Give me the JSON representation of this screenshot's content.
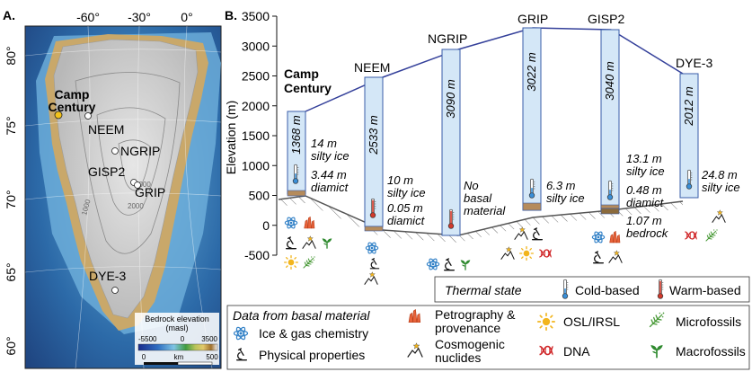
{
  "panel_a": {
    "label": "A.",
    "lon_ticks": [
      "-60°",
      "-30°",
      "0°"
    ],
    "lat_ticks": [
      "80°",
      "75°",
      "70°",
      "65°",
      "60°"
    ],
    "contours": [
      "1000",
      "2000",
      "3000"
    ],
    "sites": [
      {
        "name": "Camp Century",
        "line1": "Camp",
        "line2": "Century",
        "highlight": true
      },
      {
        "name": "NEEM"
      },
      {
        "name": "NGRIP"
      },
      {
        "name": "GISP2"
      },
      {
        "name": "GRIP"
      },
      {
        "name": "DYE-3"
      }
    ],
    "legend": {
      "title_line1": "Bedrock elevation",
      "title_line2": "(masl)",
      "min": "-5500",
      "zero": "0",
      "max": "3500",
      "scale_start": "0",
      "scale_unit": "km",
      "scale_end": "500",
      "colors": [
        "#1a2c8c",
        "#2f6fc2",
        "#7fc4e3",
        "#3f9b3f",
        "#b8c45a",
        "#e2c86a",
        "#a0702c",
        "#f2f2f2"
      ]
    }
  },
  "panel_b": {
    "label": "B.",
    "y_axis_label": "Elevation (m)",
    "y_ticks": [
      "3500",
      "3000",
      "2500",
      "2000",
      "1500",
      "1000",
      "500",
      "0",
      "-500"
    ],
    "cores": [
      {
        "name_line1": "Camp",
        "name_line2": "Century",
        "depth": "1368 m",
        "thermal": "cold",
        "basal": [
          "14 m",
          "silty ice",
          "3.44 m",
          "diamict"
        ]
      },
      {
        "name_line1": "NEEM",
        "depth": "2533 m",
        "thermal": "warm",
        "basal": [
          "10 m",
          "silty ice",
          "0.05 m",
          "diamict"
        ]
      },
      {
        "name_line1": "NGRIP",
        "depth": "3090 m",
        "thermal": "warm",
        "basal": [
          "No",
          "basal",
          "material"
        ]
      },
      {
        "name_line1": "GRIP",
        "depth": "3022 m",
        "thermal": "cold",
        "basal": [
          "6.3 m",
          "silty ice"
        ]
      },
      {
        "name_line1": "GISP2",
        "depth": "3040 m",
        "thermal": "cold",
        "basal": [
          "13.1 m",
          "silty ice",
          "0.48 m",
          "diamict",
          "1.07 m",
          "bedrock"
        ]
      },
      {
        "name_line1": "DYE-3",
        "depth": "2012 m",
        "thermal": "cold",
        "basal": [
          "24.8 m",
          "silty ice"
        ]
      }
    ],
    "thermal_legend": {
      "title": "Thermal state",
      "cold": "Cold-based",
      "warm": "Warm-based"
    },
    "data_legend": {
      "title": "Data from basal material",
      "items": {
        "ice_gas": "Ice & gas chemistry",
        "physical": "Physical properties",
        "petro_line1": "Petrography &",
        "petro_line2": "provenance",
        "cosmo_line1": "Cosmogenic",
        "cosmo_line2": "nuclides",
        "osl": "OSL/IRSL",
        "dna": "DNA",
        "microfossils": "Microfossils",
        "macrofossils": "Macrofossils"
      }
    },
    "colors": {
      "core_fill": "#d4e7f7",
      "core_stroke": "#3a5ea8",
      "surface_line": "#34409a",
      "sediment": "#b58b5b",
      "cold": "#3a8fd8",
      "warm": "#d23a2c",
      "ice_icon": "#2f7fc6",
      "petro_icon": "#e8633a",
      "osl_icon": "#f2b51d",
      "dna_icon": "#d0282a",
      "fossil_icon": "#4b9b3a"
    }
  }
}
